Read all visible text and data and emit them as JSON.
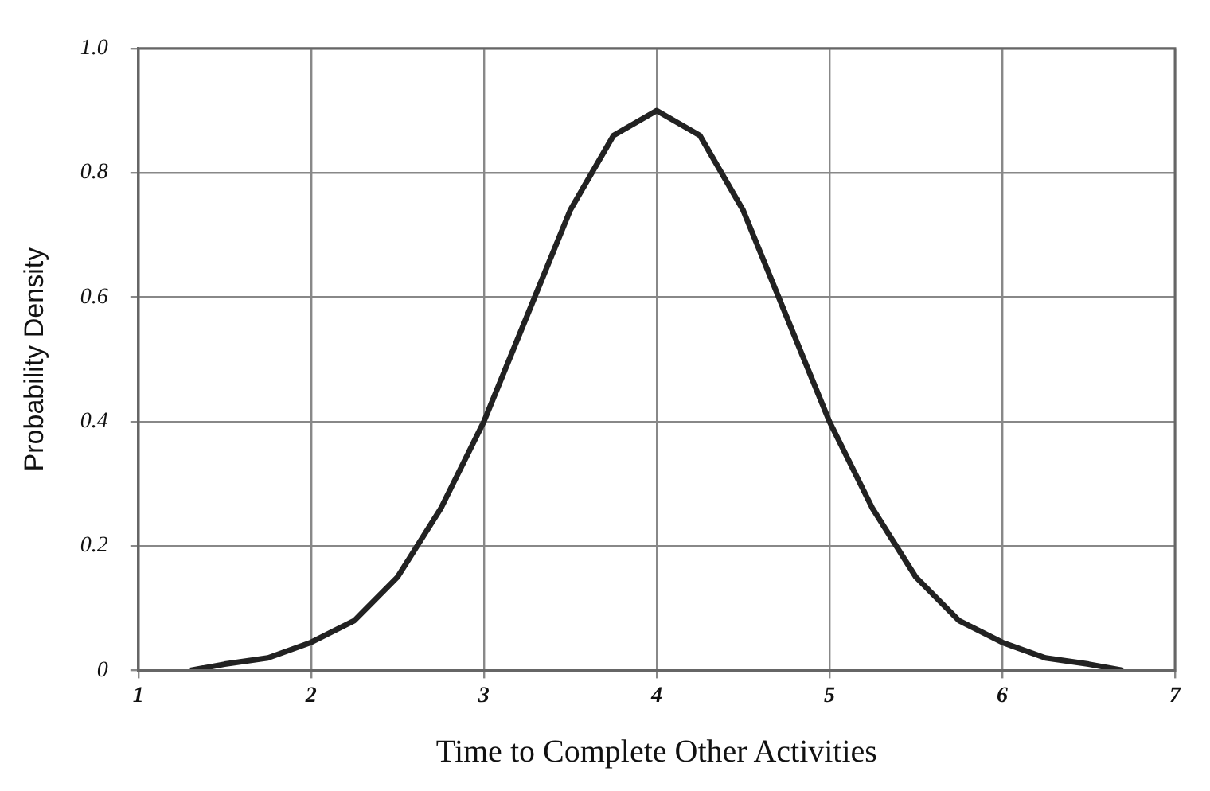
{
  "chart_data": {
    "type": "line",
    "xlabel": "Time to Complete Other Activities",
    "ylabel": "Probability Density",
    "series": [
      {
        "color": "#222222",
        "x": [
          1.3,
          1.5,
          1.75,
          2,
          2.25,
          2.5,
          2.75,
          3,
          3.25,
          3.5,
          3.75,
          4,
          4.25,
          4.5,
          4.75,
          5,
          5.25,
          5.5,
          5.75,
          6,
          6.25,
          6.5,
          6.7
        ],
        "values": [
          0,
          0.01,
          0.02,
          0.045,
          0.08,
          0.15,
          0.26,
          0.4,
          0.57,
          0.74,
          0.86,
          0.9,
          0.86,
          0.74,
          0.57,
          0.4,
          0.26,
          0.15,
          0.08,
          0.045,
          0.02,
          0.01,
          0
        ]
      }
    ],
    "xlim": [
      1,
      7
    ],
    "xticks": [
      1,
      2,
      3,
      4,
      5,
      6,
      7
    ],
    "ylim": [
      0,
      1
    ],
    "yticks": [
      0,
      0.2,
      0.4,
      0.6,
      0.8,
      {
        "value": 1,
        "label": "1.0"
      }
    ],
    "grid": true,
    "legend": false,
    "marker": "none",
    "line_style": "solid"
  }
}
